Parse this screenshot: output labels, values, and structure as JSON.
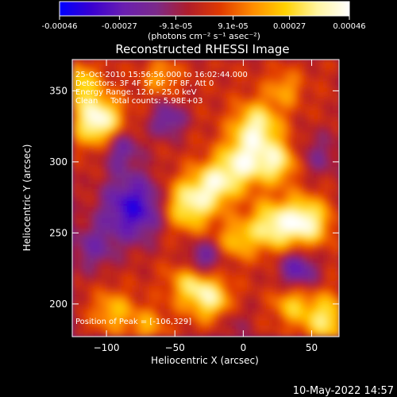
{
  "colorbar": {
    "tick_labels": [
      "-0.00046",
      "-0.00027",
      "-9.1e-05",
      "9.1e-05",
      "0.00027",
      "0.00046"
    ],
    "unit_label": "(photons cm⁻² s⁻¹ asec⁻²)",
    "stops": [
      "#0000ff",
      "#3a00d0",
      "#6a1fb0",
      "#7b2a8a",
      "#b01d2a",
      "#e03a00",
      "#ff8c00",
      "#ffd100",
      "#fff5a0",
      "#ffffff"
    ]
  },
  "title": "Reconstructed RHESSI Image",
  "overlay_lines": [
    "25-Oct-2010 15:56:56.000 to 16:02:44.000",
    "Detectors: 3F 4F 5F 6F 7F 8F, Att 0",
    "Energy Range: 12.0 - 25.0 keV",
    "Clean     Total counts: 5.98E+03"
  ],
  "peak_text": "Position of Peak = [-106,329]",
  "footer_timestamp": "10-May-2022 14:57",
  "chart_data": {
    "type": "heatmap",
    "title": "Reconstructed RHESSI Image",
    "xlabel": "Heliocentric X (arcsec)",
    "ylabel": "Heliocentric Y (arcsec)",
    "xlim": [
      -125,
      70
    ],
    "ylim": [
      177,
      372
    ],
    "x_ticks": [
      -100,
      -50,
      0,
      50
    ],
    "y_ticks": [
      200,
      250,
      300,
      350
    ],
    "x_tick_labels": [
      "−100",
      "−50",
      "0",
      "50"
    ],
    "y_tick_labels": [
      "200",
      "250",
      "300",
      "350"
    ],
    "colorbar_range": [
      -0.00046,
      0.00046
    ],
    "colorbar_ticks": [
      -0.00046,
      -0.00027,
      -9.1e-05,
      9.1e-05,
      0.00027,
      0.00046
    ],
    "peak_position": [
      -106,
      329
    ],
    "grid": false
  }
}
